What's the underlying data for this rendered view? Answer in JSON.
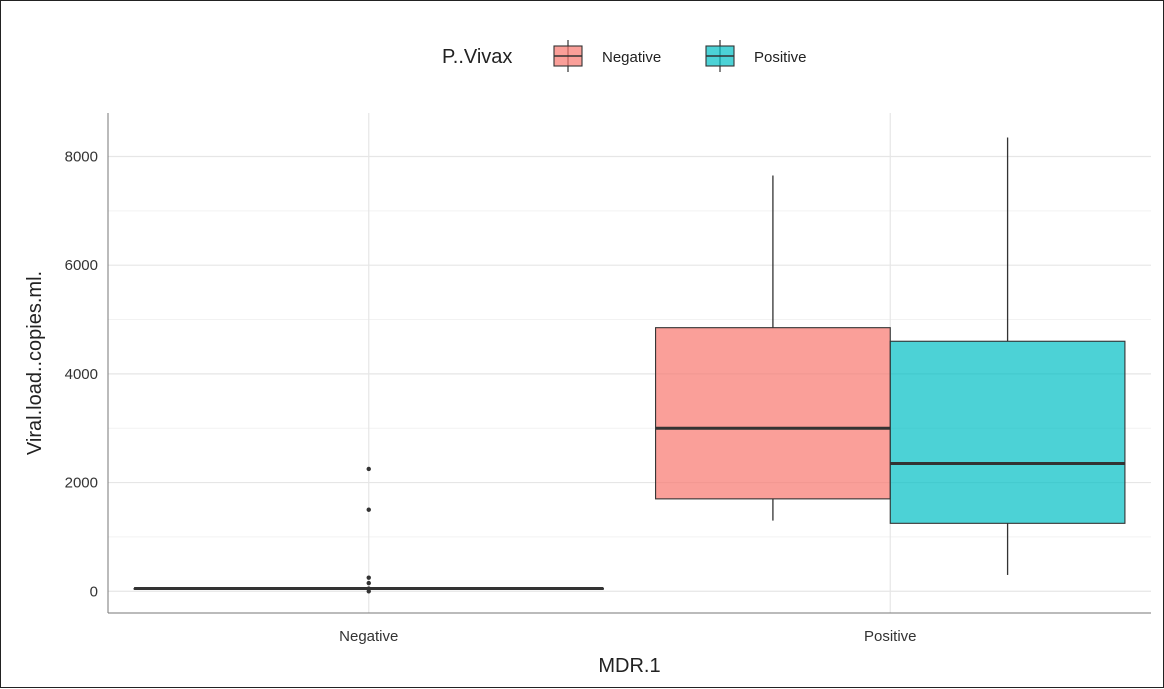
{
  "chart_data": {
    "type": "boxplot",
    "xlabel": "MDR.1",
    "ylabel": "Viral.load..copies.ml.",
    "ylim": [
      -400,
      8800
    ],
    "yticks": [
      0,
      2000,
      4000,
      6000,
      8000
    ],
    "categories": [
      "Negative",
      "Positive"
    ],
    "grid": true,
    "legend": {
      "title": "P..Vivax",
      "placement": "top",
      "entries": [
        {
          "label": "Negative",
          "color": "#F8766D"
        },
        {
          "label": "Positive",
          "color": "#00BFC4"
        }
      ]
    },
    "series": [
      {
        "name": "Negative",
        "color": "#F8766D",
        "boxes": [
          null,
          {
            "category": "Positive",
            "min": 1300,
            "q1": 1700,
            "median": 3000,
            "q3": 4850,
            "max": 7650,
            "outliers": []
          }
        ]
      },
      {
        "name": "Positive",
        "color": "#00BFC4",
        "boxes": [
          null,
          {
            "category": "Positive",
            "min": 300,
            "q1": 1250,
            "median": 2350,
            "q3": 4600,
            "max": 8350,
            "outliers": []
          }
        ]
      }
    ],
    "single_boxes": [
      {
        "category": "Negative",
        "min": 50,
        "q1": 50,
        "median": 50,
        "q3": 50,
        "max": 50,
        "outliers": [
          2250,
          1500,
          250,
          150,
          50,
          0
        ]
      }
    ]
  }
}
